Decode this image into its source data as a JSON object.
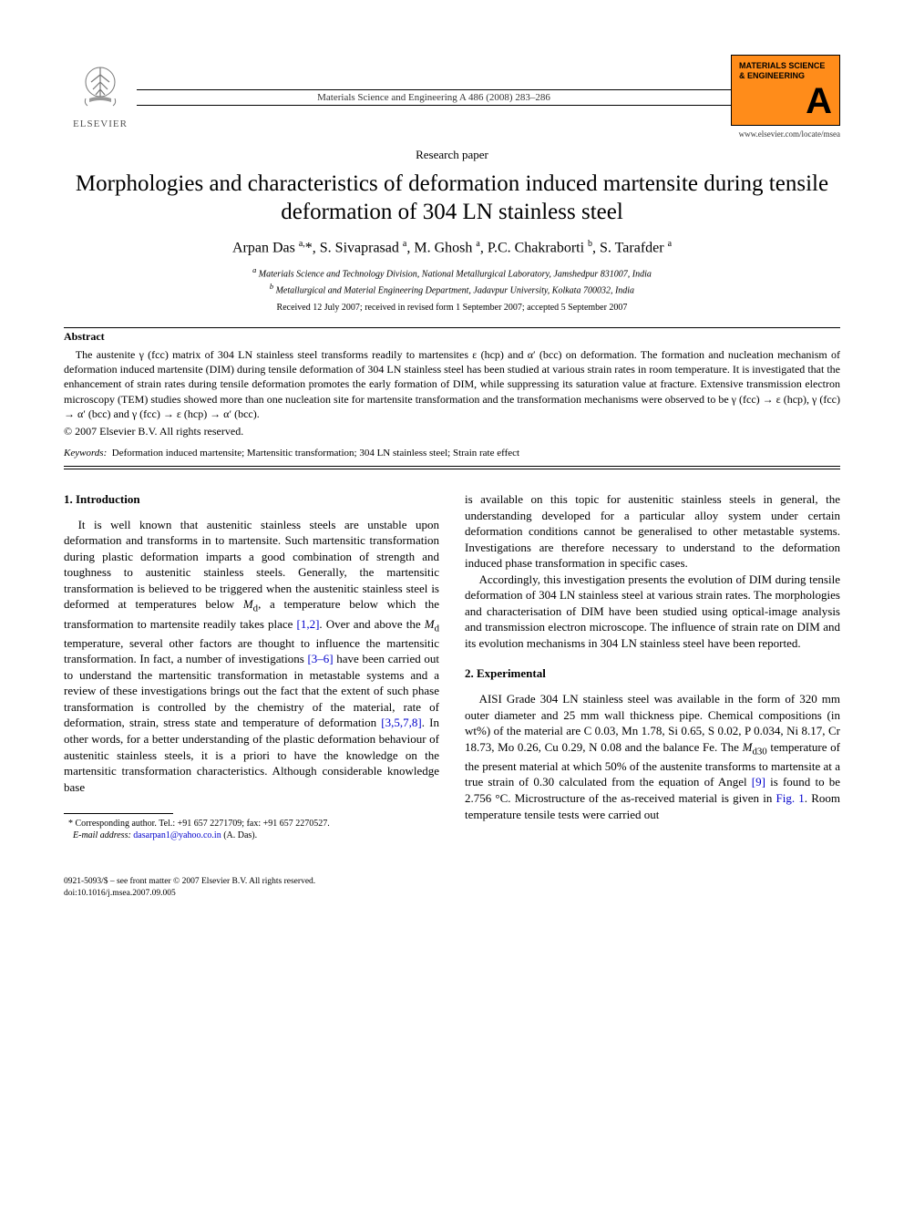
{
  "header": {
    "publisher_name": "ELSEVIER",
    "journal_reference": "Materials Science and Engineering A  486 (2008) 283–286",
    "journal_logo_title": "MATERIALS SCIENCE & ENGINEERING",
    "journal_logo_letter": "A",
    "journal_url": "www.elsevier.com/locate/msea"
  },
  "paper_type": "Research paper",
  "title": "Morphologies and characteristics of deformation induced martensite during tensile deformation of 304 LN stainless steel",
  "authors_html": "Arpan Das <sup>a,</sup>*, S. Sivaprasad <sup>a</sup>, M. Ghosh <sup>a</sup>, P.C. Chakraborti <sup>b</sup>, S. Tarafder <sup>a</sup>",
  "affiliations": {
    "a": "Materials Science and Technology Division, National Metallurgical Laboratory, Jamshedpur 831007, India",
    "b": "Metallurgical and Material Engineering Department, Jadavpur University, Kolkata 700032, India"
  },
  "dates": "Received 12 July 2007; received in revised form 1 September 2007; accepted 5 September 2007",
  "abstract": {
    "heading": "Abstract",
    "text": "The austenite γ (fcc) matrix of 304 LN stainless steel transforms readily to martensites ε (hcp) and α′ (bcc) on deformation. The formation and nucleation mechanism of deformation induced martensite (DIM) during tensile deformation of 304 LN stainless steel has been studied at various strain rates in room temperature. It is investigated that the enhancement of strain rates during tensile deformation promotes the early formation of DIM, while suppressing its saturation value at fracture. Extensive transmission electron microscopy (TEM) studies showed more than one nucleation site for martensite transformation and the transformation mechanisms were observed to be γ (fcc) → ε (hcp), γ (fcc) → α′ (bcc) and γ (fcc) → ε (hcp) → α′ (bcc).",
    "copyright": "© 2007 Elsevier B.V. All rights reserved."
  },
  "keywords": {
    "label": "Keywords:",
    "text": "Deformation induced martensite; Martensitic transformation; 304 LN stainless steel; Strain rate effect"
  },
  "body": {
    "section1": {
      "heading": "1.  Introduction",
      "p1a": "It is well known that austenitic stainless steels are unstable upon deformation and transforms in to martensite. Such martensitic transformation during plastic deformation imparts a good combination of strength and toughness to austenitic stainless steels. Generally, the martensitic transformation is believed to be triggered when the austenitic stainless steel is deformed at temperatures below ",
      "md": "M",
      "md_sub": "d",
      "p1b": ", a temperature below which the transformation to martensite readily takes place ",
      "ref12": "[1,2]",
      "p1c": ". Over and above the ",
      "p1d": " temperature, several other factors are thought to influence the martensitic transformation. In fact, a number of investigations ",
      "ref36": "[3–6]",
      "p1e": " have been carried out to understand the martensitic transformation in metastable systems and a review of these investigations brings out the fact that the extent of such phase transformation is controlled by the chemistry of the material, rate of deformation, strain, stress state and temperature of deformation ",
      "ref3578": "[3,5,7,8]",
      "p1f": ". In other words, for a better understanding of the plastic deformation behaviour of austenitic stainless steels, it is a priori to have the knowledge on the martensitic transformation characteristics. Although considerable knowledge base",
      "p1_col2a": "is available on this topic for austenitic stainless steels in general, the understanding developed for a particular alloy system under certain deformation conditions cannot be generalised to other metastable systems. Investigations are therefore necessary to understand to the deformation induced phase transformation in specific cases.",
      "p2": "Accordingly, this investigation presents the evolution of DIM during tensile deformation of 304 LN stainless steel at various strain rates. The morphologies and characterisation of DIM have been studied using optical-image analysis and transmission electron microscope. The influence of strain rate on DIM and its evolution mechanisms in 304 LN stainless steel have been reported."
    },
    "section2": {
      "heading": "2.  Experimental",
      "p1a": "AISI Grade 304 LN stainless steel was available in the form of 320 mm outer diameter and 25 mm wall thickness pipe. Chemical compositions (in wt%) of the material are C 0.03, Mn 1.78, Si 0.65, S 0.02, P 0.034, Ni 8.17, Cr 18.73, Mo 0.26, Cu 0.29, N 0.08 and the balance Fe. The ",
      "md30": "M",
      "md30_sub": "d30",
      "p1b": " temperature of the present material at which 50% of the austenite transforms to martensite at a true strain of 0.30 calculated from the equation of Angel ",
      "ref9": "[9]",
      "p1c": " is found to be 2.756 °C. Microstructure of the as-received material is given in ",
      "fig1": "Fig. 1",
      "p1d": ". Room temperature tensile tests were carried out"
    }
  },
  "footnote": {
    "marker": "*",
    "text": "Corresponding author. Tel.: +91 657 2271709; fax: +91 657 2270527.",
    "email_label": "E-mail address:",
    "email": "dasarpan1@yahoo.co.in",
    "email_suffix": "(A. Das)."
  },
  "bottom": {
    "line1": "0921-5093/$ – see front matter © 2007 Elsevier B.V. All rights reserved.",
    "line2": "doi:10.1016/j.msea.2007.09.005"
  },
  "colors": {
    "link": "#0000cc",
    "logo_bg": "#ff8c1a",
    "text": "#000000"
  }
}
